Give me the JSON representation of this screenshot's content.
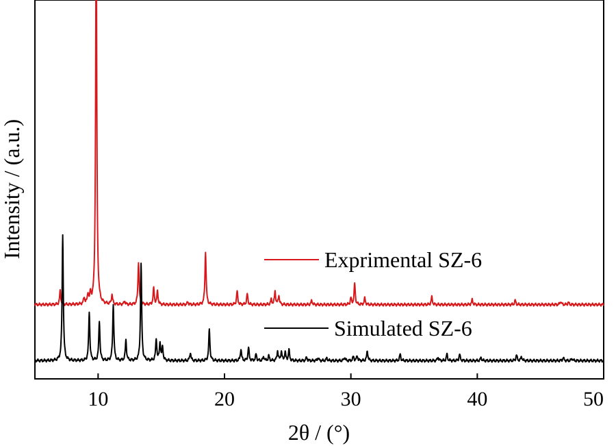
{
  "chart_data": {
    "type": "line",
    "xlabel": "2θ / (°)",
    "ylabel": "Intensity / (a.u.)",
    "xlim": [
      5,
      50
    ],
    "ylim": [
      0,
      1
    ],
    "x_ticks": [
      10,
      20,
      30,
      40,
      50
    ],
    "y_ticks_labeled": false,
    "grid": false,
    "legend": "inline labels beside each trace",
    "series": [
      {
        "name": "Exprimental SZ-6",
        "color": "#d7191c",
        "baseline": 0.196,
        "peaks": [
          [
            7.0,
            0.036
          ],
          [
            8.9,
            0.017
          ],
          [
            9.2,
            0.026
          ],
          [
            9.4,
            0.026
          ],
          [
            9.85,
            1.0
          ],
          [
            11.1,
            0.026
          ],
          [
            12.1,
            0.009
          ],
          [
            13.2,
            0.114
          ],
          [
            14.4,
            0.043
          ],
          [
            14.7,
            0.035
          ],
          [
            17.1,
            0.007
          ],
          [
            18.5,
            0.14
          ],
          [
            21.0,
            0.035
          ],
          [
            21.8,
            0.028
          ],
          [
            23.7,
            0.013
          ],
          [
            24.0,
            0.035
          ],
          [
            24.3,
            0.024
          ],
          [
            26.9,
            0.011
          ],
          [
            30.0,
            0.017
          ],
          [
            30.3,
            0.055
          ],
          [
            31.1,
            0.017
          ],
          [
            36.4,
            0.02
          ],
          [
            39.6,
            0.013
          ],
          [
            43.0,
            0.011
          ],
          [
            46.6,
            0.009
          ],
          [
            47.2,
            0.006
          ]
        ]
      },
      {
        "name": "Simulated SZ-6",
        "color": "#000000",
        "baseline": 0.048,
        "peaks": [
          [
            7.2,
            0.333
          ],
          [
            9.3,
            0.129
          ],
          [
            10.1,
            0.105
          ],
          [
            11.2,
            0.149
          ],
          [
            12.2,
            0.054
          ],
          [
            13.4,
            0.257
          ],
          [
            14.6,
            0.057
          ],
          [
            14.9,
            0.048
          ],
          [
            15.1,
            0.035
          ],
          [
            17.3,
            0.022
          ],
          [
            18.8,
            0.083
          ],
          [
            21.3,
            0.031
          ],
          [
            21.9,
            0.035
          ],
          [
            22.5,
            0.017
          ],
          [
            23.1,
            0.011
          ],
          [
            23.5,
            0.013
          ],
          [
            24.2,
            0.026
          ],
          [
            24.5,
            0.024
          ],
          [
            24.8,
            0.022
          ],
          [
            25.1,
            0.028
          ],
          [
            26.5,
            0.009
          ],
          [
            27.4,
            0.008
          ],
          [
            28.1,
            0.007
          ],
          [
            29.5,
            0.009
          ],
          [
            30.2,
            0.011
          ],
          [
            30.5,
            0.013
          ],
          [
            31.3,
            0.026
          ],
          [
            33.9,
            0.017
          ],
          [
            36.9,
            0.009
          ],
          [
            37.6,
            0.017
          ],
          [
            38.6,
            0.017
          ],
          [
            40.3,
            0.008
          ],
          [
            43.1,
            0.015
          ],
          [
            43.5,
            0.011
          ],
          [
            46.8,
            0.008
          ],
          [
            47.5,
            0.006
          ]
        ]
      }
    ]
  }
}
